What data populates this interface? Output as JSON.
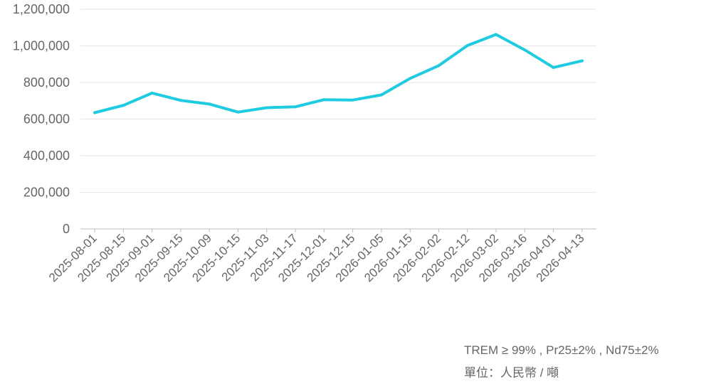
{
  "chart_data": {
    "type": "line",
    "x": [
      "2025-08-01",
      "2025-08-15",
      "2025-09-01",
      "2025-09-15",
      "2025-10-09",
      "2025-10-15",
      "2025-11-03",
      "2025-11-17",
      "2025-12-01",
      "2025-12-15",
      "2026-01-05",
      "2026-01-15",
      "2026-02-02",
      "2026-02-12",
      "2026-03-02",
      "2026-03-16",
      "2026-04-01",
      "2026-04-13"
    ],
    "series": [
      {
        "values": [
          635000,
          675000,
          742000,
          702000,
          682000,
          638000,
          662000,
          667000,
          706000,
          704000,
          732000,
          822000,
          892000,
          1002000,
          1062000,
          978000,
          882000,
          918000
        ],
        "color": "#1ECBE1"
      }
    ],
    "yticks": [
      "0",
      "200,000",
      "400,000",
      "600,000",
      "800,000",
      "1,000,000",
      "1,200,000"
    ],
    "ylim": [
      0,
      1200000
    ],
    "grid": true,
    "title": "",
    "xlabel": "",
    "ylabel": ""
  },
  "notes": {
    "spec": "TREM ≥ 99% , Pr25±2% , Nd75±2%",
    "unit": "單位：人民幣 / 噸"
  }
}
